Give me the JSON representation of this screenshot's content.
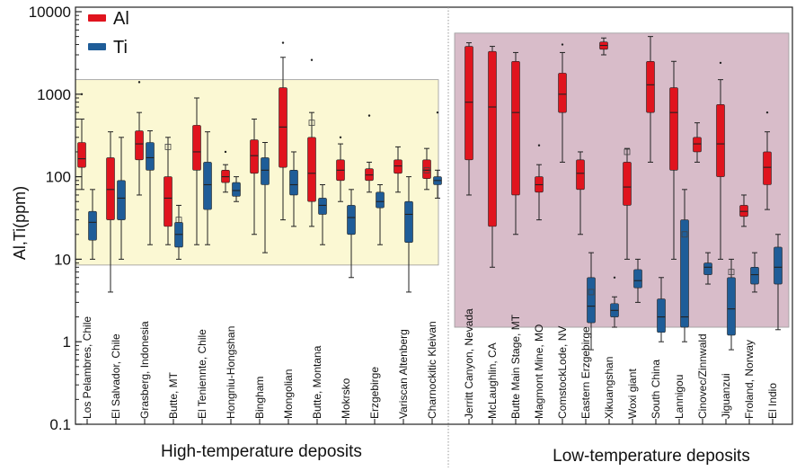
{
  "chart_data": {
    "type": "box",
    "ylabel": "Al,Ti(ppm)",
    "yscale": "log",
    "ylim": [
      0.1,
      10000
    ],
    "yticks": [
      "0.1",
      "1",
      "10",
      "100",
      "1000",
      "10000"
    ],
    "legend": {
      "position": "top-left",
      "items": [
        {
          "name": "Al",
          "color": "#e0141e"
        },
        {
          "name": "Ti",
          "color": "#1f5d98"
        }
      ]
    },
    "colors": {
      "al": "#e0141e",
      "ti": "#1f5d98",
      "high_band": "#fbf8d3",
      "low_band": "#d8bcc9",
      "highlight_label": "#d42a1a"
    },
    "groups": [
      {
        "name": "High-temperature deposits",
        "band_range": [
          8.5,
          1500
        ]
      },
      {
        "name": "Low-temperature deposits",
        "band_range": [
          1.5,
          5500
        ]
      }
    ],
    "categories": [
      {
        "label": "Los Pelambres, Chile",
        "group": 0,
        "al": {
          "whislo": 70,
          "q1": 130,
          "med": 165,
          "q3": 260,
          "whishi": 500,
          "fliers": [
            1000
          ]
        },
        "ti": {
          "whislo": 10,
          "q1": 17,
          "med": 28,
          "q3": 38,
          "whishi": 70,
          "fliers": []
        }
      },
      {
        "label": "El Salvador, Chile",
        "group": 0,
        "al": {
          "whislo": 4,
          "q1": 30,
          "med": 70,
          "q3": 170,
          "whishi": 350,
          "fliers": []
        },
        "ti": {
          "whislo": 10,
          "q1": 30,
          "med": 55,
          "q3": 90,
          "whishi": 300,
          "fliers": []
        }
      },
      {
        "label": "Grasberg, Indonesia",
        "group": 0,
        "al": {
          "whislo": 60,
          "q1": 160,
          "med": 250,
          "q3": 360,
          "whishi": 600,
          "fliers": [
            1400
          ]
        },
        "ti": {
          "whislo": 15,
          "q1": 120,
          "med": 170,
          "q3": 260,
          "whishi": 360,
          "fliers": []
        }
      },
      {
        "label": "Butte, MT",
        "group": 0,
        "al": {
          "whislo": 15,
          "q1": 25,
          "med": 55,
          "q3": 100,
          "whishi": 300,
          "fliers": [
            230
          ]
        },
        "ti": {
          "whislo": 10,
          "q1": 14,
          "med": 20,
          "q3": 28,
          "whishi": 45,
          "fliers": [
            30
          ]
        }
      },
      {
        "label": "El Teniennte, Chile",
        "group": 0,
        "al": {
          "whislo": 15,
          "q1": 120,
          "med": 200,
          "q3": 420,
          "whishi": 900,
          "fliers": []
        },
        "ti": {
          "whislo": 15,
          "q1": 40,
          "med": 80,
          "q3": 150,
          "whishi": 350,
          "fliers": []
        }
      },
      {
        "label": "Hongniu-Hongshan",
        "group": 0,
        "highlight": true,
        "al": {
          "whislo": 65,
          "q1": 85,
          "med": 100,
          "q3": 120,
          "whishi": 140,
          "fliers": [
            200
          ]
        },
        "ti": {
          "whislo": 50,
          "q1": 58,
          "med": 68,
          "q3": 85,
          "whishi": 100,
          "fliers": []
        }
      },
      {
        "label": "Bingham",
        "group": 0,
        "al": {
          "whislo": 20,
          "q1": 110,
          "med": 180,
          "q3": 280,
          "whishi": 500,
          "fliers": []
        },
        "ti": {
          "whislo": 12,
          "q1": 80,
          "med": 120,
          "q3": 170,
          "whishi": 260,
          "fliers": []
        }
      },
      {
        "label": "Mongolian",
        "group": 0,
        "al": {
          "whislo": 30,
          "q1": 130,
          "med": 400,
          "q3": 1200,
          "whishi": 2800,
          "fliers": [
            4200
          ]
        },
        "ti": {
          "whislo": 25,
          "q1": 60,
          "med": 80,
          "q3": 120,
          "whishi": 200,
          "fliers": []
        }
      },
      {
        "label": "Butte, Montana",
        "group": 0,
        "al": {
          "whislo": 25,
          "q1": 50,
          "med": 110,
          "q3": 300,
          "whishi": 600,
          "fliers": [
            2600,
            450
          ]
        },
        "ti": {
          "whislo": 15,
          "q1": 35,
          "med": 45,
          "q3": 55,
          "whishi": 80,
          "fliers": []
        }
      },
      {
        "label": "Mokrsko",
        "group": 0,
        "al": {
          "whislo": 50,
          "q1": 90,
          "med": 120,
          "q3": 160,
          "whishi": 250,
          "fliers": [
            300
          ]
        },
        "ti": {
          "whislo": 6,
          "q1": 20,
          "med": 32,
          "q3": 45,
          "whishi": 70,
          "fliers": []
        }
      },
      {
        "label": "Erzgebirge",
        "group": 0,
        "al": {
          "whislo": 65,
          "q1": 90,
          "med": 105,
          "q3": 125,
          "whishi": 150,
          "fliers": [
            550
          ]
        },
        "ti": {
          "whislo": 15,
          "q1": 42,
          "med": 50,
          "q3": 65,
          "whishi": 80,
          "fliers": []
        }
      },
      {
        "label": "Variscan Altenberg",
        "group": 0,
        "al": {
          "whislo": 65,
          "q1": 110,
          "med": 135,
          "q3": 160,
          "whishi": 230,
          "fliers": []
        },
        "ti": {
          "whislo": 4,
          "q1": 16,
          "med": 35,
          "q3": 50,
          "whishi": 100,
          "fliers": []
        }
      },
      {
        "label": "Charnockitic Kleivan",
        "group": 0,
        "al": {
          "whislo": 70,
          "q1": 95,
          "med": 120,
          "q3": 160,
          "whishi": 220,
          "fliers": [
            120
          ]
        },
        "ti": {
          "whislo": 55,
          "q1": 80,
          "med": 90,
          "q3": 100,
          "whishi": 120,
          "fliers": [
            600
          ]
        }
      },
      {
        "label": "Jerritt Canyon, Nevada",
        "group": 1,
        "al": {
          "whislo": 60,
          "q1": 160,
          "med": 800,
          "q3": 3800,
          "whishi": 4200,
          "fliers": []
        },
        "ti": null
      },
      {
        "label": "McLaughlin, CA",
        "group": 1,
        "al": {
          "whislo": 8,
          "q1": 25,
          "med": 700,
          "q3": 3300,
          "whishi": 3800,
          "fliers": []
        },
        "ti": null
      },
      {
        "label": "Butte Main Stage, MT",
        "group": 1,
        "al": {
          "whislo": 20,
          "q1": 60,
          "med": 600,
          "q3": 2500,
          "whishi": 3200,
          "fliers": []
        },
        "ti": null
      },
      {
        "label": "Magmont Mine, MO",
        "group": 1,
        "al": {
          "whislo": 30,
          "q1": 65,
          "med": 80,
          "q3": 100,
          "whishi": 140,
          "fliers": [
            240
          ]
        },
        "ti": null
      },
      {
        "label": "ComstockLode, NV",
        "group": 1,
        "al": {
          "whislo": 150,
          "q1": 600,
          "med": 1000,
          "q3": 1800,
          "whishi": 3200,
          "fliers": [
            4000
          ]
        },
        "ti": null
      },
      {
        "label": "Eastern Erzgebirge",
        "group": 1,
        "al": {
          "whislo": 20,
          "q1": 70,
          "med": 110,
          "q3": 160,
          "whishi": 200,
          "fliers": []
        },
        "ti": {
          "whislo": 0.8,
          "q1": 1.7,
          "med": 2.7,
          "q3": 6,
          "whishi": 12,
          "fliers": [
            4
          ]
        }
      },
      {
        "label": "Xikuangshan",
        "group": 1,
        "al": {
          "whislo": 3000,
          "q1": 3500,
          "med": 3900,
          "q3": 4300,
          "whishi": 4800,
          "fliers": []
        },
        "ti": {
          "whislo": 1.5,
          "q1": 2.0,
          "med": 2.4,
          "q3": 2.9,
          "whishi": 3.5,
          "fliers": [
            6
          ]
        }
      },
      {
        "label": "Woxi giant",
        "group": 1,
        "al": {
          "whislo": 10,
          "q1": 45,
          "med": 75,
          "q3": 150,
          "whishi": 220,
          "fliers": [
            200
          ]
        },
        "ti": {
          "whislo": 3,
          "q1": 4.5,
          "med": 5.5,
          "q3": 7.5,
          "whishi": 10,
          "fliers": []
        }
      },
      {
        "label": "South China",
        "group": 1,
        "al": {
          "whislo": 150,
          "q1": 600,
          "med": 1300,
          "q3": 2500,
          "whishi": 5000,
          "fliers": []
        },
        "ti": {
          "whislo": 1,
          "q1": 1.3,
          "med": 2,
          "q3": 3.3,
          "whishi": 6,
          "fliers": []
        }
      },
      {
        "label": "Lannigou",
        "group": 1,
        "al": {
          "whislo": 10,
          "q1": 120,
          "med": 600,
          "q3": 1200,
          "whishi": 2500,
          "fliers": []
        },
        "ti": {
          "whislo": 1,
          "q1": 1.5,
          "med": 2,
          "q3": 30,
          "whishi": 70,
          "fliers": [
            20
          ]
        }
      },
      {
        "label": "Cinovec/Zinnwald",
        "group": 1,
        "al": {
          "whislo": 150,
          "q1": 200,
          "med": 250,
          "q3": 300,
          "whishi": 450,
          "fliers": []
        },
        "ti": {
          "whislo": 5,
          "q1": 6.5,
          "med": 8,
          "q3": 9,
          "whishi": 12,
          "fliers": []
        }
      },
      {
        "label": "Jiguanzui",
        "group": 1,
        "al": {
          "whislo": 10,
          "q1": 100,
          "med": 250,
          "q3": 750,
          "whishi": 1500,
          "fliers": [
            2400
          ]
        },
        "ti": {
          "whislo": 0.8,
          "q1": 1.2,
          "med": 2.5,
          "q3": 6,
          "whishi": 10,
          "fliers": [
            7
          ]
        }
      },
      {
        "label": "Froland, Norway",
        "group": 1,
        "al": {
          "whislo": 25,
          "q1": 33,
          "med": 38,
          "q3": 45,
          "whishi": 60,
          "fliers": []
        },
        "ti": {
          "whislo": 4,
          "q1": 5,
          "med": 6.5,
          "q3": 8,
          "whishi": 12,
          "fliers": []
        }
      },
      {
        "label": "El Indio",
        "group": 1,
        "al": {
          "whislo": 40,
          "q1": 80,
          "med": 130,
          "q3": 200,
          "whishi": 350,
          "fliers": [
            600
          ]
        },
        "ti": {
          "whislo": 1.4,
          "q1": 5,
          "med": 8,
          "q3": 14,
          "whishi": 20,
          "fliers": []
        }
      }
    ]
  }
}
